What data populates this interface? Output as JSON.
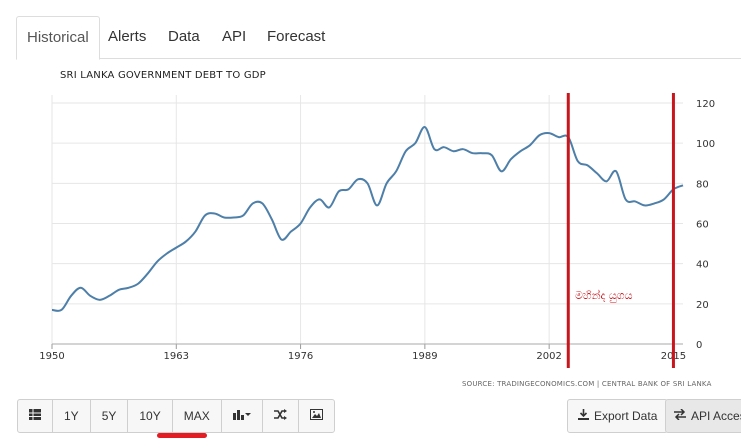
{
  "tabs": [
    "Historical",
    "Alerts",
    "Data",
    "API",
    "Forecast"
  ],
  "toolbar": {
    "buttons": [
      "1Y",
      "5Y",
      "10Y",
      "MAX"
    ],
    "export_label": "Export Data",
    "api_label": "API Access"
  },
  "source_text": "SOURCE: TRADINGECONOMICS.COM | CENTRAL BANK OF SRI LANKA",
  "annotation": "මහින්ද යුගය",
  "colors": {
    "line": "#4d7fa9",
    "marker": "#c8161d",
    "highlight": "#e31b23"
  },
  "chart_data": {
    "type": "line",
    "title": "SRI LANKA GOVERNMENT DEBT TO GDP",
    "xlabel": "",
    "ylabel": "",
    "xlim": [
      1950,
      2016
    ],
    "ylim": [
      0,
      120
    ],
    "x_ticks": [
      1950,
      1963,
      1976,
      1989,
      2002,
      2015
    ],
    "y_ticks": [
      0,
      20,
      40,
      60,
      80,
      100,
      120
    ],
    "grid": true,
    "markers": [
      2004,
      2015
    ],
    "x": [
      1950,
      1951,
      1952,
      1953,
      1954,
      1955,
      1956,
      1957,
      1958,
      1959,
      1960,
      1961,
      1962,
      1963,
      1964,
      1965,
      1966,
      1967,
      1968,
      1969,
      1970,
      1971,
      1972,
      1973,
      1974,
      1975,
      1976,
      1977,
      1978,
      1979,
      1980,
      1981,
      1982,
      1983,
      1984,
      1985,
      1986,
      1987,
      1988,
      1989,
      1990,
      1991,
      1992,
      1993,
      1994,
      1995,
      1996,
      1997,
      1998,
      1999,
      2000,
      2001,
      2002,
      2003,
      2004,
      2005,
      2006,
      2007,
      2008,
      2009,
      2010,
      2011,
      2012,
      2013,
      2014,
      2015,
      2016
    ],
    "values": [
      17,
      17,
      24,
      28,
      24,
      22,
      24,
      27,
      28,
      30,
      35,
      41,
      45,
      48,
      51,
      56,
      64,
      65,
      63,
      63,
      64,
      70,
      70,
      62,
      52,
      56,
      60,
      68,
      72,
      68,
      76,
      77,
      82,
      80,
      69,
      80,
      86,
      96,
      100,
      108,
      97,
      98,
      96,
      97,
      95,
      95,
      94,
      86,
      92,
      96,
      99,
      104,
      105,
      103,
      103,
      91,
      89,
      85,
      81,
      86,
      72,
      71,
      69,
      70,
      72,
      77,
      79
    ]
  }
}
